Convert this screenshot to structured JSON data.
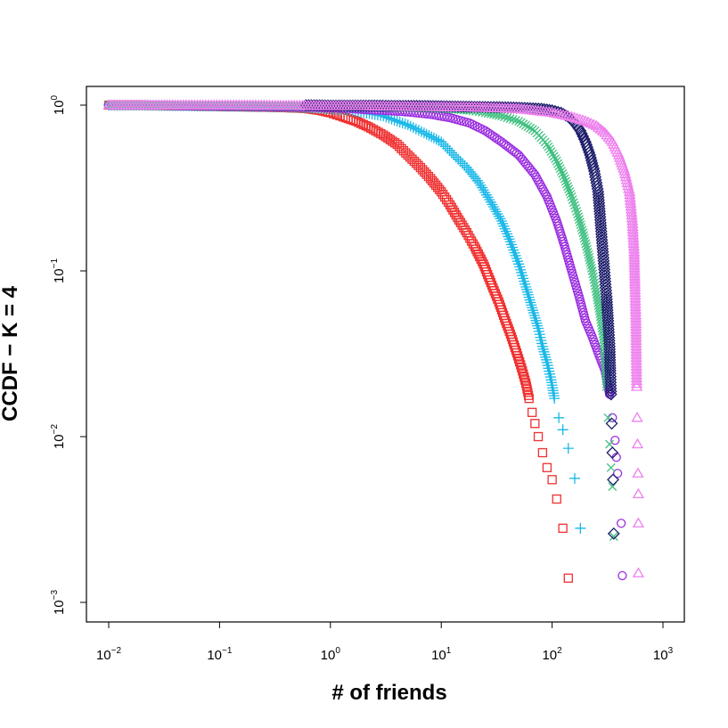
{
  "chart_data": {
    "type": "scatter",
    "title": "",
    "xlabel": "# of friends",
    "ylabel": "CCDF − K = 4",
    "xscale": "log",
    "yscale": "log",
    "xlim": [
      0.01,
      1000
    ],
    "ylim": [
      0.001,
      1
    ],
    "x_ticks": [
      {
        "value": 0.01,
        "base": "10",
        "exp": "−2"
      },
      {
        "value": 0.1,
        "base": "10",
        "exp": "−1"
      },
      {
        "value": 1,
        "base": "10",
        "exp": "0"
      },
      {
        "value": 10,
        "base": "10",
        "exp": "1"
      },
      {
        "value": 100,
        "base": "10",
        "exp": "2"
      },
      {
        "value": 1000,
        "base": "10",
        "exp": "3"
      }
    ],
    "y_ticks": [
      {
        "value": 0.001,
        "base": "10",
        "exp": "−3"
      },
      {
        "value": 0.01,
        "base": "10",
        "exp": "−2"
      },
      {
        "value": 0.1,
        "base": "10",
        "exp": "−1"
      },
      {
        "value": 1,
        "base": "10",
        "exp": "0"
      }
    ],
    "series": [
      {
        "name": "red-squares",
        "marker": "square",
        "color": "#f03030",
        "points": [
          [
            0.01,
            1
          ],
          [
            0.02,
            1
          ],
          [
            0.03,
            0.995
          ],
          [
            0.05,
            0.99
          ],
          [
            0.08,
            0.985
          ],
          [
            0.12,
            0.98
          ],
          [
            0.2,
            0.975
          ],
          [
            0.3,
            0.97
          ],
          [
            0.4,
            0.965
          ],
          [
            0.6,
            0.955
          ],
          [
            0.8,
            0.93
          ],
          [
            1,
            0.9
          ],
          [
            1.3,
            0.85
          ],
          [
            1.7,
            0.8
          ],
          [
            2.2,
            0.74
          ],
          [
            3,
            0.66
          ],
          [
            4,
            0.58
          ],
          [
            5,
            0.5
          ],
          [
            6.5,
            0.42
          ],
          [
            8,
            0.36
          ],
          [
            10,
            0.3
          ],
          [
            12,
            0.25
          ],
          [
            14,
            0.21
          ],
          [
            17,
            0.17
          ],
          [
            20,
            0.14
          ],
          [
            24,
            0.11
          ],
          [
            28,
            0.085
          ],
          [
            33,
            0.065
          ],
          [
            38,
            0.05
          ],
          [
            43,
            0.04
          ],
          [
            48,
            0.032
          ],
          [
            53,
            0.026
          ],
          [
            58,
            0.021
          ],
          [
            62,
            0.017
          ],
          [
            66,
            0.014
          ],
          [
            70,
            0.012
          ],
          [
            75,
            0.01
          ],
          [
            82,
            0.008
          ],
          [
            90,
            0.0065
          ],
          [
            100,
            0.0055
          ],
          [
            110,
            0.0042
          ],
          [
            125,
            0.0028
          ],
          [
            140,
            0.0014
          ]
        ]
      },
      {
        "name": "cyan-plus",
        "marker": "plus",
        "color": "#1ab8e8",
        "points": [
          [
            0.01,
            1
          ],
          [
            0.02,
            1
          ],
          [
            0.03,
            0.995
          ],
          [
            0.05,
            0.99
          ],
          [
            0.1,
            0.985
          ],
          [
            0.2,
            0.98
          ],
          [
            0.4,
            0.975
          ],
          [
            0.7,
            0.96
          ],
          [
            1,
            0.95
          ],
          [
            1.5,
            0.93
          ],
          [
            2,
            0.9
          ],
          [
            3,
            0.86
          ],
          [
            4,
            0.8
          ],
          [
            5,
            0.76
          ],
          [
            7,
            0.68
          ],
          [
            10,
            0.6
          ],
          [
            13,
            0.5
          ],
          [
            17,
            0.42
          ],
          [
            22,
            0.34
          ],
          [
            28,
            0.26
          ],
          [
            35,
            0.2
          ],
          [
            42,
            0.15
          ],
          [
            50,
            0.11
          ],
          [
            58,
            0.08
          ],
          [
            66,
            0.06
          ],
          [
            75,
            0.045
          ],
          [
            82,
            0.035
          ],
          [
            90,
            0.028
          ],
          [
            98,
            0.022
          ],
          [
            105,
            0.017
          ],
          [
            115,
            0.013
          ],
          [
            125,
            0.011
          ],
          [
            140,
            0.0085
          ],
          [
            160,
            0.0056
          ],
          [
            180,
            0.0028
          ]
        ]
      },
      {
        "name": "purple-circles",
        "marker": "circle",
        "color": "#9b30e0",
        "points": [
          [
            0.01,
            1
          ],
          [
            0.03,
            1
          ],
          [
            0.04,
            0.995
          ],
          [
            0.08,
            0.99
          ],
          [
            0.15,
            0.985
          ],
          [
            0.3,
            0.98
          ],
          [
            0.6,
            0.975
          ],
          [
            1,
            0.965
          ],
          [
            1.5,
            0.955
          ],
          [
            2,
            0.94
          ],
          [
            3,
            0.93
          ],
          [
            5,
            0.91
          ],
          [
            8,
            0.88
          ],
          [
            12,
            0.84
          ],
          [
            18,
            0.78
          ],
          [
            25,
            0.7
          ],
          [
            35,
            0.6
          ],
          [
            50,
            0.5
          ],
          [
            70,
            0.38
          ],
          [
            90,
            0.28
          ],
          [
            110,
            0.2
          ],
          [
            130,
            0.14
          ],
          [
            150,
            0.1
          ],
          [
            175,
            0.07
          ],
          [
            200,
            0.05
          ],
          [
            230,
            0.04
          ],
          [
            260,
            0.032
          ],
          [
            300,
            0.025
          ],
          [
            330,
            0.018
          ],
          [
            350,
            0.013
          ],
          [
            370,
            0.0095
          ],
          [
            380,
            0.0075
          ],
          [
            390,
            0.006
          ],
          [
            420,
            0.003
          ],
          [
            430,
            0.00145
          ]
        ]
      },
      {
        "name": "green-x",
        "marker": "x",
        "color": "#40c080",
        "points": [
          [
            0.01,
            1
          ],
          [
            0.02,
            1
          ],
          [
            0.05,
            1
          ],
          [
            0.1,
            0.995
          ],
          [
            0.2,
            0.99
          ],
          [
            0.4,
            0.99
          ],
          [
            0.7,
            0.985
          ],
          [
            1,
            0.985
          ],
          [
            1.5,
            0.98
          ],
          [
            2,
            0.98
          ],
          [
            3,
            0.975
          ],
          [
            5,
            0.97
          ],
          [
            8,
            0.96
          ],
          [
            12,
            0.95
          ],
          [
            18,
            0.93
          ],
          [
            25,
            0.9
          ],
          [
            35,
            0.86
          ],
          [
            50,
            0.8
          ],
          [
            70,
            0.7
          ],
          [
            90,
            0.58
          ],
          [
            110,
            0.46
          ],
          [
            130,
            0.36
          ],
          [
            150,
            0.28
          ],
          [
            170,
            0.22
          ],
          [
            190,
            0.17
          ],
          [
            210,
            0.13
          ],
          [
            230,
            0.1
          ],
          [
            250,
            0.075
          ],
          [
            270,
            0.055
          ],
          [
            290,
            0.04
          ],
          [
            300,
            0.03
          ],
          [
            310,
            0.02
          ],
          [
            320,
            0.013
          ],
          [
            330,
            0.009
          ],
          [
            340,
            0.0065
          ],
          [
            350,
            0.005
          ],
          [
            360,
            0.0025
          ]
        ]
      },
      {
        "name": "navy-diamonds",
        "marker": "diamond",
        "color": "#1c1c6a",
        "points": [
          [
            0.6,
            1
          ],
          [
            1,
            0.995
          ],
          [
            1.5,
            0.995
          ],
          [
            2.5,
            0.995
          ],
          [
            4,
            0.99
          ],
          [
            6,
            0.99
          ],
          [
            10,
            0.985
          ],
          [
            15,
            0.98
          ],
          [
            25,
            0.975
          ],
          [
            40,
            0.97
          ],
          [
            60,
            0.96
          ],
          [
            80,
            0.95
          ],
          [
            100,
            0.93
          ],
          [
            120,
            0.9
          ],
          [
            140,
            0.85
          ],
          [
            160,
            0.78
          ],
          [
            180,
            0.7
          ],
          [
            200,
            0.6
          ],
          [
            220,
            0.5
          ],
          [
            240,
            0.4
          ],
          [
            260,
            0.3
          ],
          [
            270,
            0.22
          ],
          [
            280,
            0.16
          ],
          [
            290,
            0.12
          ],
          [
            300,
            0.09
          ],
          [
            310,
            0.07
          ],
          [
            320,
            0.05
          ],
          [
            330,
            0.035
          ],
          [
            335,
            0.025
          ],
          [
            340,
            0.018
          ],
          [
            345,
            0.012
          ],
          [
            350,
            0.008
          ],
          [
            355,
            0.0055
          ],
          [
            360,
            0.0026
          ]
        ]
      },
      {
        "name": "violet-triangles",
        "marker": "triangle",
        "color": "#ee80ee",
        "points": [
          [
            0.01,
            1
          ],
          [
            0.02,
            1
          ],
          [
            0.03,
            1
          ],
          [
            0.05,
            1
          ],
          [
            0.1,
            1
          ],
          [
            0.2,
            1
          ],
          [
            0.3,
            0.995
          ],
          [
            0.5,
            0.995
          ],
          [
            1,
            0.99
          ],
          [
            2,
            0.99
          ],
          [
            3,
            0.985
          ],
          [
            5,
            0.98
          ],
          [
            10,
            0.975
          ],
          [
            20,
            0.97
          ],
          [
            50,
            0.95
          ],
          [
            100,
            0.9
          ],
          [
            150,
            0.85
          ],
          [
            200,
            0.8
          ],
          [
            250,
            0.75
          ],
          [
            300,
            0.68
          ],
          [
            350,
            0.6
          ],
          [
            400,
            0.5
          ],
          [
            450,
            0.4
          ],
          [
            500,
            0.3
          ],
          [
            530,
            0.2
          ],
          [
            550,
            0.13
          ],
          [
            560,
            0.08
          ],
          [
            570,
            0.05
          ],
          [
            575,
            0.03
          ],
          [
            580,
            0.02
          ],
          [
            585,
            0.013
          ],
          [
            590,
            0.009
          ],
          [
            595,
            0.006
          ],
          [
            600,
            0.0045
          ],
          [
            600,
            0.003
          ],
          [
            600,
            0.0015
          ]
        ]
      }
    ]
  }
}
